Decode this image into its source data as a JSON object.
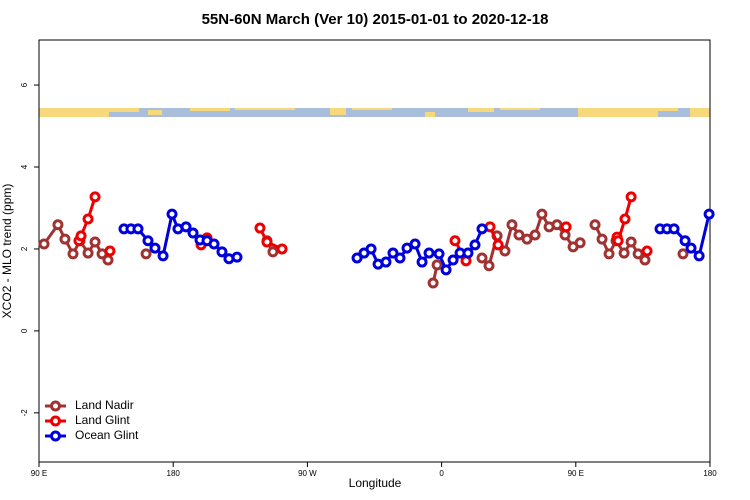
{
  "chart_data": {
    "type": "line",
    "title": "55N-60N March (Ver 10)   2015-01-01 to 2020-12-18",
    "x_label": "Longitude",
    "y_label": "XCO2 - MLO trend (ppm)",
    "xlim": [
      90,
      540
    ],
    "xticks": [
      {
        "value": 90,
        "label": "90 E"
      },
      180,
      {
        "value": 270,
        "label": "90 W"
      },
      {
        "value": 360,
        "label": "0"
      },
      {
        "value": 450,
        "label": "90 E"
      },
      {
        "value": 540,
        "label": "180"
      }
    ],
    "ylim": [
      -3.2,
      7.1
    ],
    "yticks": [
      -2,
      0,
      2,
      4,
      6
    ],
    "legend": "bottom-left",
    "series": [
      {
        "name": "Land Nadir",
        "color": "#a03232",
        "x": [
          93.4,
          102.7,
          107.4,
          112.8,
          117.5,
          122.9,
          127.6,
          132.3,
          136.3,
          null,
          161.8,
          null,
          242.9,
          246.9,
          null,
          354.3,
          357.0,
          null,
          387.1,
          391.8,
          397.2,
          402.5,
          407.2,
          411.9,
          417.3,
          422.7,
          427.3,
          432.1,
          437.4,
          442.8,
          448.2,
          452.9,
          null,
          462.9,
          467.6,
          472.3,
          477.0,
          482.4,
          487.1,
          491.8,
          496.4,
          null,
          521.9
        ],
        "values": [
          2.12,
          2.59,
          2.24,
          1.88,
          2.2,
          1.9,
          2.17,
          1.88,
          1.73,
          null,
          1.88,
          null,
          2.2,
          1.93,
          null,
          1.17,
          1.61,
          null,
          1.78,
          1.59,
          2.32,
          1.95,
          2.59,
          2.34,
          2.24,
          2.34,
          2.85,
          2.54,
          2.59,
          2.34,
          2.05,
          2.15,
          null,
          2.59,
          2.24,
          1.88,
          2.2,
          1.9,
          2.17,
          1.88,
          1.73,
          null,
          1.88
        ]
      },
      {
        "name": "Land Glint",
        "color": "#ee0000",
        "x": [
          116.8,
          118.2,
          122.9,
          127.6,
          null,
          137.6,
          null,
          198.7,
          202.7,
          null,
          238.2,
          242.9,
          253.0,
          null,
          369.0,
          376.4,
          null,
          392.5,
          397.9,
          null,
          443.5,
          null,
          477.7,
          478.4,
          483.0,
          487.1,
          null,
          497.8
        ],
        "values": [
          2.2,
          2.32,
          2.73,
          3.27,
          null,
          1.95,
          null,
          2.1,
          2.27,
          null,
          2.51,
          2.17,
          2.0,
          null,
          2.2,
          1.71,
          null,
          2.54,
          2.1,
          null,
          2.54,
          null,
          2.29,
          2.2,
          2.73,
          3.27,
          null,
          1.95
        ]
      },
      {
        "name": "Ocean Glint",
        "color": "#0000dd",
        "x": [
          147.0,
          151.7,
          156.4,
          163.1,
          167.8,
          173.2,
          179.2,
          183.2,
          188.6,
          193.3,
          198.0,
          202.7,
          207.4,
          212.7,
          217.4,
          222.8,
          null,
          303.3,
          308.0,
          312.7,
          317.4,
          322.7,
          327.4,
          332.1,
          336.8,
          342.2,
          346.9,
          351.6,
          358.3,
          363.0,
          367.7,
          372.4,
          377.7,
          382.4,
          387.1,
          null,
          506.5,
          511.2,
          515.9,
          523.3,
          527.3,
          532.7,
          539.4
        ],
        "values": [
          2.49,
          2.49,
          2.49,
          2.2,
          2.02,
          1.83,
          2.85,
          2.49,
          2.54,
          2.39,
          2.22,
          2.2,
          2.12,
          1.93,
          1.76,
          1.8,
          null,
          1.78,
          1.9,
          2.0,
          1.63,
          1.68,
          1.9,
          1.78,
          2.02,
          2.12,
          1.68,
          1.9,
          1.88,
          1.49,
          1.73,
          1.9,
          1.9,
          2.1,
          2.49,
          null,
          2.49,
          2.49,
          2.49,
          2.2,
          2.02,
          1.83,
          2.85
        ]
      }
    ]
  }
}
